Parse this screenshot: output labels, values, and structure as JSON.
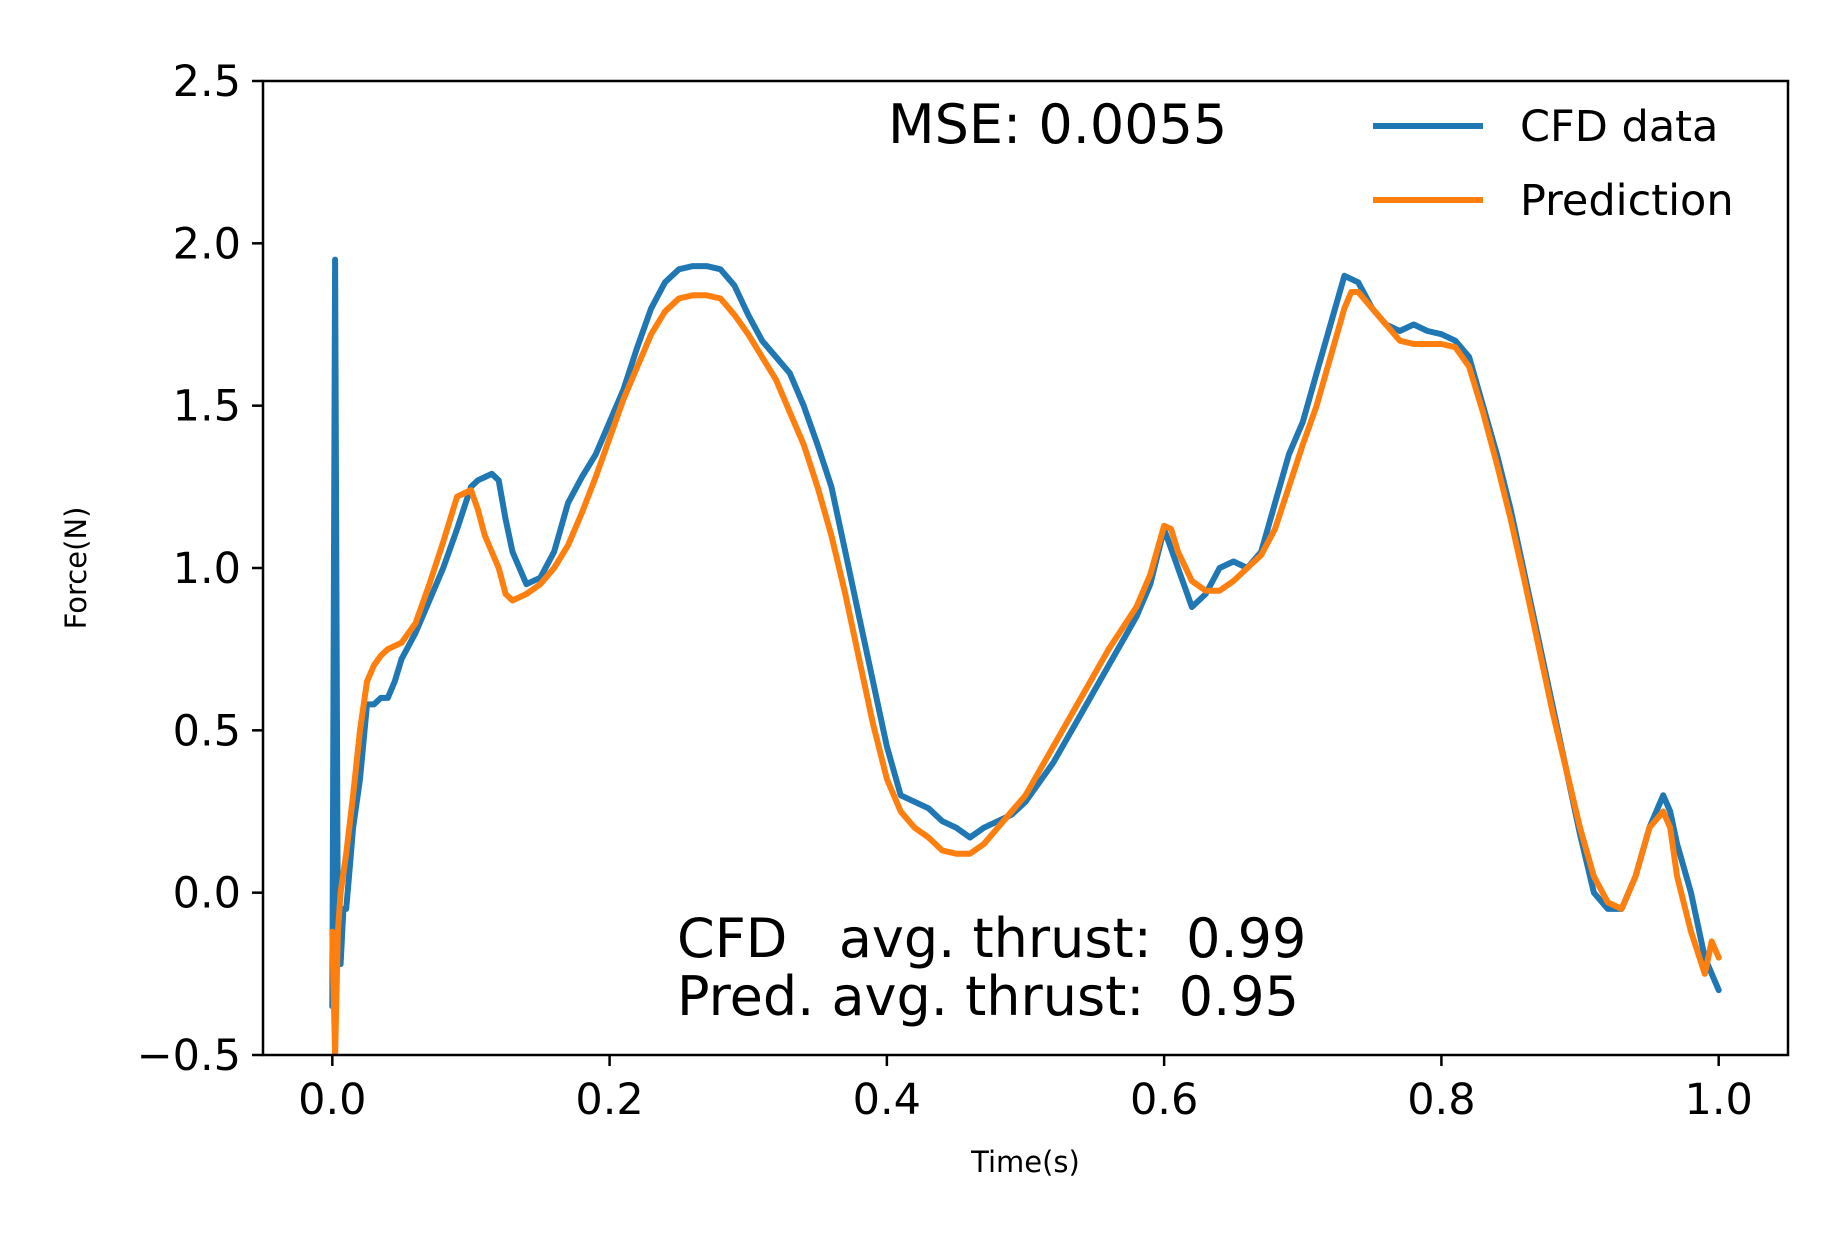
{
  "chart_data": {
    "type": "line",
    "title": "",
    "xlabel": "Time(s)",
    "ylabel": "Force(N)",
    "xlim": [
      -0.05,
      1.05
    ],
    "ylim": [
      -0.5,
      2.5
    ],
    "xticks": [
      0.0,
      0.2,
      0.4,
      0.6,
      0.8,
      1.0
    ],
    "xtick_labels": [
      "0.0",
      "0.2",
      "0.4",
      "0.6",
      "0.8",
      "1.0"
    ],
    "yticks": [
      -0.5,
      0.0,
      0.5,
      1.0,
      1.5,
      2.0,
      2.5
    ],
    "ytick_labels": [
      "−0.5",
      "0.0",
      "0.5",
      "1.0",
      "1.5",
      "2.0",
      "2.5"
    ],
    "grid": false,
    "legend_position": "top-right",
    "series": [
      {
        "name": "CFD data",
        "color": "#1f77b4",
        "x": [
          0.0,
          0.002,
          0.004,
          0.006,
          0.008,
          0.01,
          0.012,
          0.015,
          0.02,
          0.025,
          0.03,
          0.035,
          0.04,
          0.045,
          0.05,
          0.06,
          0.07,
          0.08,
          0.09,
          0.1,
          0.105,
          0.11,
          0.115,
          0.12,
          0.125,
          0.13,
          0.14,
          0.15,
          0.16,
          0.17,
          0.18,
          0.19,
          0.2,
          0.21,
          0.22,
          0.23,
          0.24,
          0.25,
          0.26,
          0.27,
          0.28,
          0.29,
          0.3,
          0.31,
          0.32,
          0.33,
          0.34,
          0.35,
          0.36,
          0.37,
          0.38,
          0.39,
          0.4,
          0.41,
          0.42,
          0.43,
          0.44,
          0.45,
          0.46,
          0.47,
          0.48,
          0.49,
          0.5,
          0.52,
          0.54,
          0.56,
          0.58,
          0.59,
          0.6,
          0.61,
          0.62,
          0.63,
          0.64,
          0.65,
          0.66,
          0.67,
          0.68,
          0.69,
          0.7,
          0.71,
          0.72,
          0.73,
          0.74,
          0.75,
          0.76,
          0.77,
          0.78,
          0.79,
          0.8,
          0.81,
          0.82,
          0.83,
          0.84,
          0.85,
          0.86,
          0.87,
          0.88,
          0.89,
          0.9,
          0.91,
          0.92,
          0.93,
          0.94,
          0.95,
          0.96,
          0.965,
          0.97,
          0.98,
          0.99,
          1.0
        ],
        "y": [
          -0.35,
          1.95,
          -0.2,
          -0.22,
          -0.05,
          -0.05,
          0.05,
          0.2,
          0.35,
          0.58,
          0.58,
          0.6,
          0.6,
          0.65,
          0.72,
          0.8,
          0.9,
          1.0,
          1.12,
          1.25,
          1.27,
          1.28,
          1.29,
          1.27,
          1.15,
          1.05,
          0.95,
          0.97,
          1.05,
          1.2,
          1.28,
          1.35,
          1.45,
          1.55,
          1.68,
          1.8,
          1.88,
          1.92,
          1.93,
          1.93,
          1.92,
          1.87,
          1.78,
          1.7,
          1.65,
          1.6,
          1.5,
          1.38,
          1.25,
          1.05,
          0.85,
          0.65,
          0.45,
          0.3,
          0.28,
          0.26,
          0.22,
          0.2,
          0.17,
          0.2,
          0.22,
          0.24,
          0.28,
          0.4,
          0.55,
          0.7,
          0.85,
          0.95,
          1.12,
          1.0,
          0.88,
          0.92,
          1.0,
          1.02,
          1.0,
          1.05,
          1.2,
          1.35,
          1.45,
          1.6,
          1.75,
          1.9,
          1.88,
          1.8,
          1.75,
          1.73,
          1.75,
          1.73,
          1.72,
          1.7,
          1.65,
          1.5,
          1.35,
          1.18,
          0.98,
          0.78,
          0.58,
          0.38,
          0.18,
          0.0,
          -0.05,
          -0.05,
          0.05,
          0.2,
          0.3,
          0.25,
          0.15,
          0.0,
          -0.2,
          -0.3
        ]
      },
      {
        "name": "Prediction",
        "color": "#ff7f0e",
        "x": [
          0.0,
          0.002,
          0.004,
          0.006,
          0.01,
          0.015,
          0.02,
          0.025,
          0.03,
          0.035,
          0.04,
          0.05,
          0.06,
          0.07,
          0.08,
          0.09,
          0.1,
          0.105,
          0.11,
          0.12,
          0.125,
          0.13,
          0.135,
          0.14,
          0.15,
          0.16,
          0.17,
          0.18,
          0.19,
          0.2,
          0.21,
          0.22,
          0.23,
          0.24,
          0.25,
          0.26,
          0.27,
          0.28,
          0.29,
          0.3,
          0.31,
          0.32,
          0.33,
          0.34,
          0.35,
          0.36,
          0.37,
          0.38,
          0.39,
          0.4,
          0.41,
          0.42,
          0.43,
          0.44,
          0.45,
          0.46,
          0.47,
          0.48,
          0.49,
          0.5,
          0.52,
          0.54,
          0.56,
          0.58,
          0.59,
          0.6,
          0.605,
          0.61,
          0.62,
          0.63,
          0.64,
          0.65,
          0.66,
          0.67,
          0.68,
          0.69,
          0.7,
          0.71,
          0.72,
          0.73,
          0.735,
          0.74,
          0.75,
          0.76,
          0.77,
          0.78,
          0.79,
          0.8,
          0.81,
          0.82,
          0.83,
          0.84,
          0.85,
          0.86,
          0.87,
          0.88,
          0.89,
          0.9,
          0.91,
          0.92,
          0.93,
          0.94,
          0.95,
          0.96,
          0.965,
          0.97,
          0.98,
          0.99,
          0.995,
          1.0
        ],
        "y": [
          -0.12,
          -0.5,
          -0.12,
          0.0,
          0.12,
          0.3,
          0.5,
          0.65,
          0.7,
          0.73,
          0.75,
          0.77,
          0.83,
          0.95,
          1.08,
          1.22,
          1.24,
          1.18,
          1.1,
          1.0,
          0.92,
          0.9,
          0.91,
          0.92,
          0.95,
          1.0,
          1.07,
          1.17,
          1.28,
          1.4,
          1.52,
          1.62,
          1.72,
          1.79,
          1.83,
          1.84,
          1.84,
          1.83,
          1.78,
          1.72,
          1.65,
          1.58,
          1.48,
          1.38,
          1.25,
          1.1,
          0.92,
          0.72,
          0.52,
          0.35,
          0.25,
          0.2,
          0.17,
          0.13,
          0.12,
          0.12,
          0.15,
          0.2,
          0.25,
          0.3,
          0.45,
          0.6,
          0.75,
          0.88,
          0.98,
          1.13,
          1.12,
          1.05,
          0.96,
          0.93,
          0.93,
          0.96,
          1.0,
          1.04,
          1.12,
          1.25,
          1.38,
          1.5,
          1.65,
          1.8,
          1.85,
          1.85,
          1.8,
          1.75,
          1.7,
          1.69,
          1.69,
          1.69,
          1.68,
          1.62,
          1.48,
          1.32,
          1.15,
          0.96,
          0.76,
          0.56,
          0.38,
          0.2,
          0.05,
          -0.03,
          -0.05,
          0.05,
          0.2,
          0.25,
          0.2,
          0.05,
          -0.12,
          -0.25,
          -0.15,
          -0.2
        ]
      }
    ],
    "annotations": [
      {
        "id": "mse",
        "text": "MSE: 0.0055"
      },
      {
        "id": "cfd-avg",
        "text": "CFD   avg. thrust:  0.99"
      },
      {
        "id": "pred-avg",
        "text": "Pred. avg. thrust:  0.95"
      }
    ]
  }
}
